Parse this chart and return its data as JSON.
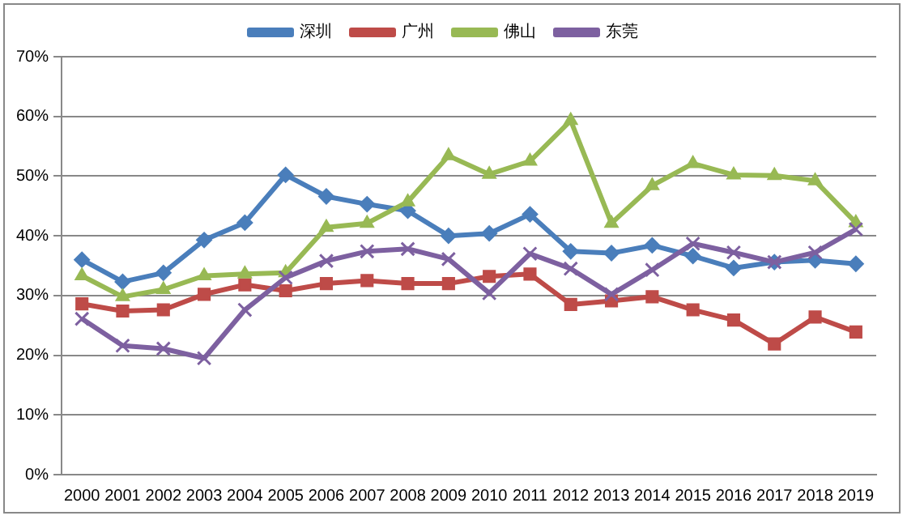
{
  "chart_data": {
    "type": "line",
    "categories": [
      "2000",
      "2001",
      "2002",
      "2003",
      "2004",
      "2005",
      "2006",
      "2007",
      "2008",
      "2009",
      "2010",
      "2011",
      "2012",
      "2013",
      "2014",
      "2015",
      "2016",
      "2017",
      "2018",
      "2019"
    ],
    "series": [
      {
        "name": "深圳",
        "color": "#4a7ebb",
        "marker": "diamond",
        "values": [
          36,
          32.3,
          33.8,
          39.3,
          42.2,
          50.2,
          46.6,
          45.3,
          44.2,
          40,
          40.4,
          43.6,
          37.4,
          37.1,
          38.4,
          36.6,
          34.6,
          35.6,
          35.9,
          35.3
        ]
      },
      {
        "name": "广州",
        "color": "#be4b48",
        "marker": "square",
        "values": [
          28.6,
          27.4,
          27.6,
          30.2,
          31.8,
          30.8,
          32,
          32.5,
          32,
          32,
          33.2,
          33.6,
          28.5,
          29.1,
          29.8,
          27.6,
          25.9,
          21.9,
          26.4,
          23.9
        ]
      },
      {
        "name": "佛山",
        "color": "#98b954",
        "marker": "triangle",
        "values": [
          33.3,
          29.8,
          31,
          33.3,
          33.6,
          33.8,
          41.4,
          42.1,
          45.7,
          53.4,
          50.3,
          52.5,
          59.3,
          42.1,
          48.4,
          52.1,
          50.2,
          50.1,
          49.2,
          42.2
        ]
      },
      {
        "name": "东莞",
        "color": "#7d60a0",
        "marker": "cross",
        "values": [
          26.1,
          21.6,
          21.1,
          19.5,
          27.6,
          33,
          35.8,
          37.4,
          37.8,
          36.1,
          30.4,
          37,
          34.5,
          30.2,
          34.3,
          38.7,
          37.2,
          35.6,
          37.2,
          41.1
        ]
      }
    ],
    "ylim": [
      0,
      70
    ],
    "yticks": [
      {
        "value": 0,
        "label": "0%"
      },
      {
        "value": 10,
        "label": "10%"
      },
      {
        "value": 20,
        "label": "20%"
      },
      {
        "value": 30,
        "label": "30%"
      },
      {
        "value": 40,
        "label": "40%"
      },
      {
        "value": 50,
        "label": "50%"
      },
      {
        "value": 60,
        "label": "60%"
      },
      {
        "value": 70,
        "label": "70%"
      }
    ],
    "grid": "y",
    "legend": "top"
  }
}
